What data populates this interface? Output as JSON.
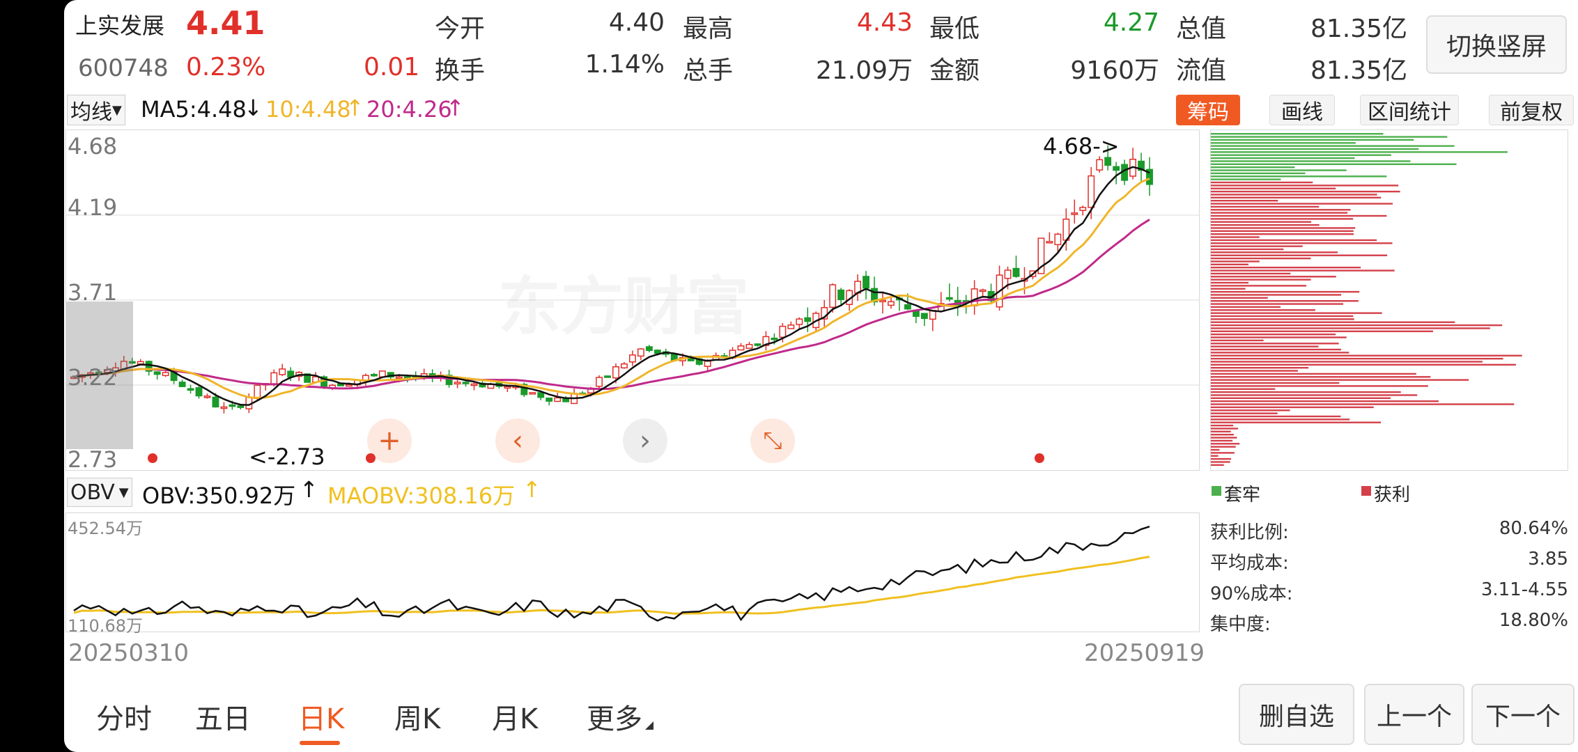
{
  "quote": {
    "name": "上实发展",
    "code": "600748",
    "price": "4.41",
    "change_pct": "0.23%",
    "change": "0.01",
    "row1": [
      {
        "label": "今开",
        "value": "4.40",
        "color": "#333333"
      },
      {
        "label": "最高",
        "value": "4.43",
        "color": "#e0302a"
      },
      {
        "label": "最低",
        "value": "4.27",
        "color": "#1a9a2a"
      },
      {
        "label": "总值",
        "value": "81.35亿",
        "color": "#333333"
      }
    ],
    "row2": [
      {
        "label": "换手",
        "value": "1.14%"
      },
      {
        "label": "总手",
        "value": "21.09万"
      },
      {
        "label": "金额",
        "value": "9160万"
      },
      {
        "label": "流值",
        "value": "81.35亿"
      }
    ],
    "switch_button": "切换竖屏"
  },
  "ma_bar": {
    "selector": "均线",
    "ma5": "MA5:4.48",
    "ma10": "10:4.48",
    "ma20": "20:4.26",
    "tools": [
      "筹码",
      "画线",
      "区间统计",
      "前复权"
    ],
    "active_tool": "筹码"
  },
  "kchart": {
    "y_ticks": [
      "4.68",
      "4.19",
      "3.71",
      "3.22",
      "2.73"
    ],
    "high_marker": "4.68->",
    "low_marker": "<-2.73",
    "watermark": "东方财富",
    "colors": {
      "up": "#e0302a",
      "down": "#1a9a2a",
      "ma5": "#111111",
      "ma10": "#f0b52a",
      "ma20": "#c0298a"
    }
  },
  "obv_bar": {
    "selector": "OBV",
    "obv": "OBV:350.92万",
    "maobv": "MAOBV:308.16万"
  },
  "obv_chart": {
    "max_label": "452.54万",
    "min_label": "110.68万",
    "colors": {
      "obv": "#111111",
      "maobv": "#f0c020"
    }
  },
  "dates": {
    "start": "20250310",
    "end": "20250919"
  },
  "chips": {
    "legend_trapped": "套牢",
    "legend_profit": "获利",
    "stats": [
      {
        "label": "获利比例:",
        "value": "80.64%"
      },
      {
        "label": "平均成本:",
        "value": "3.85"
      },
      {
        "label": "90%成本:",
        "value": "3.11-4.55"
      },
      {
        "label": "集中度:",
        "value": "18.80%"
      }
    ]
  },
  "tabs": [
    "分时",
    "五日",
    "日K",
    "周K",
    "月K",
    "更多"
  ],
  "active_tab": "日K",
  "bottom_buttons": [
    "删自选",
    "上一个",
    "下一个"
  ]
}
